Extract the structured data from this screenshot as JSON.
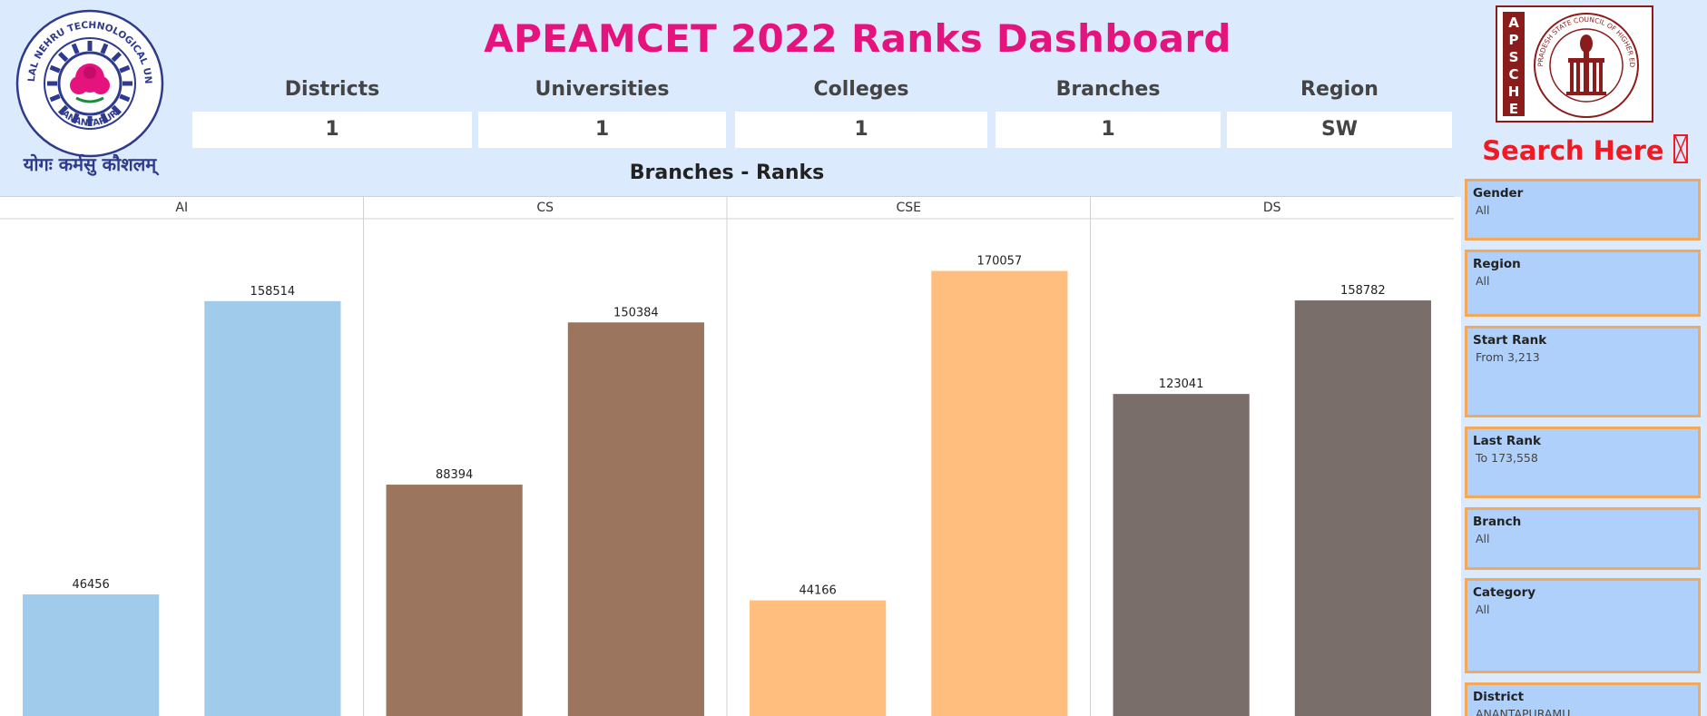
{
  "header": {
    "title": "APEAMCET 2022 Ranks Dashboard",
    "kpis": [
      {
        "label": "Districts",
        "value": "1"
      },
      {
        "label": "Universities",
        "value": "1"
      },
      {
        "label": "Colleges",
        "value": "1"
      },
      {
        "label": "Branches",
        "value": "1"
      },
      {
        "label": "Region",
        "value": "SW"
      }
    ]
  },
  "logos": {
    "left": {
      "ring_text": "JAWAHARLAL NEHRU TECHNOLOGICAL UNIVERSITY",
      "city": "ANANTAPUR",
      "motto": "योगः कर्मसु कौशलम्"
    },
    "right": {
      "vertical_text": "APSCHE",
      "ring_text": "ANDHRA PRADESH STATE COUNCIL OF HIGHER EDUCATION"
    }
  },
  "sidebar": {
    "search_label": "Search Here",
    "search_icon": "search-icon",
    "filters": [
      {
        "label": "Gender",
        "value": "All"
      },
      {
        "label": "Region",
        "value": "All"
      },
      {
        "label": "Start Rank",
        "value": "From 3,213"
      },
      {
        "label": "Last Rank",
        "value": "To 173,558"
      },
      {
        "label": "Branch",
        "value": "All"
      },
      {
        "label": "Category",
        "value": "All"
      },
      {
        "label": "District",
        "value": "ANANTAPURAMU"
      }
    ]
  },
  "chart_data": {
    "type": "bar",
    "title": "Branches - Ranks",
    "panels": [
      {
        "name": "AI",
        "values": [
          46456,
          158514
        ],
        "color": "#a0cbea"
      },
      {
        "name": "CS",
        "values": [
          88394,
          150384
        ],
        "color": "#9c755f"
      },
      {
        "name": "CSE",
        "values": [
          44166,
          170057
        ],
        "color": "#ffbe7d"
      },
      {
        "name": "DS",
        "values": [
          123041,
          158782
        ],
        "color": "#7a6e6b"
      }
    ],
    "ylim": [
      0,
      190000
    ],
    "grid": false,
    "legend": "none"
  }
}
